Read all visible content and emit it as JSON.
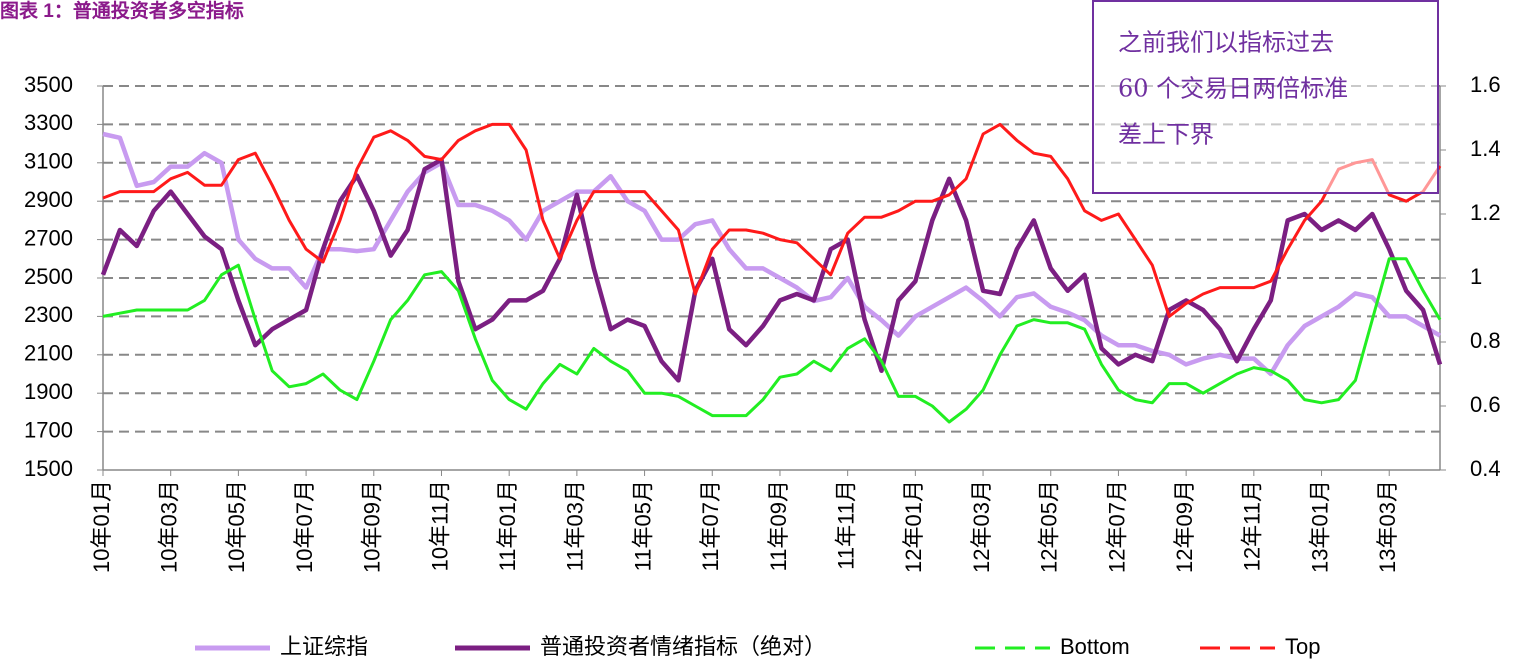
{
  "chart_data": {
    "type": "line",
    "title": "图表 1：普通投资者多空指标",
    "annotation": [
      "之前我们以指标过去",
      "60 个交易日两倍标准",
      "差上下界"
    ],
    "categories": [
      "10年01月",
      null,
      null,
      null,
      "10年03月",
      null,
      null,
      null,
      "10年05月",
      null,
      null,
      null,
      "10年07月",
      null,
      null,
      null,
      "10年09月",
      null,
      null,
      null,
      "10年11月",
      null,
      null,
      null,
      "11年01月",
      null,
      null,
      null,
      "11年03月",
      null,
      null,
      null,
      "11年05月",
      null,
      null,
      null,
      "11年07月",
      null,
      null,
      null,
      "11年09月",
      null,
      null,
      null,
      "11年11月",
      null,
      null,
      null,
      "12年01月",
      null,
      null,
      null,
      "12年03月",
      null,
      null,
      null,
      "12年05月",
      null,
      null,
      null,
      "12年07月",
      null,
      null,
      null,
      "12年09月",
      null,
      null,
      null,
      "12年11月",
      null,
      null,
      null,
      "13年01月",
      null,
      null,
      null,
      "13年03月",
      null,
      null,
      null
    ],
    "ylim": [
      1500,
      3500
    ],
    "yticks": [
      1500,
      1700,
      1900,
      2100,
      2300,
      2500,
      2700,
      2900,
      3100,
      3300,
      3500
    ],
    "y2lim": [
      0.4,
      1.6
    ],
    "y2ticks": [
      0.4,
      0.6,
      0.8,
      1,
      1.2,
      1.4,
      1.6
    ],
    "grid": true,
    "series": [
      {
        "name": "上证综指",
        "color": "#c89bf0",
        "values": [
          3250,
          3230,
          2980,
          3000,
          3080,
          3080,
          3150,
          3100,
          2700,
          2600,
          2550,
          2550,
          2450,
          2650,
          2650,
          2640,
          2650,
          2800,
          2950,
          3050,
          3100,
          2880,
          2880,
          2850,
          2800,
          2700,
          2850,
          2900,
          2950,
          2950,
          3030,
          2900,
          2850,
          2700,
          2700,
          2780,
          2800,
          2650,
          2550,
          2550,
          2500,
          2450,
          2380,
          2400,
          2500,
          2350,
          2280,
          2200,
          2300,
          2350,
          2400,
          2450,
          2380,
          2300,
          2400,
          2420,
          2350,
          2320,
          2280,
          2200,
          2150,
          2150,
          2120,
          2100,
          2050,
          2080,
          2100,
          2080,
          2080,
          2000,
          2150,
          2250,
          2300,
          2350,
          2420,
          2400,
          2300,
          2300,
          2250,
          2200
        ]
      },
      {
        "name": "普通投资者情绪指标（绝对）",
        "color": "#7b1f82",
        "axis": "y2",
        "values": [
          1.01,
          1.15,
          1.1,
          1.21,
          1.27,
          1.2,
          1.13,
          1.09,
          0.93,
          0.79,
          0.84,
          0.87,
          0.9,
          1.09,
          1.24,
          1.32,
          1.21,
          1.07,
          1.15,
          1.34,
          1.37,
          0.99,
          0.84,
          0.87,
          0.93,
          0.93,
          0.96,
          1.06,
          1.26,
          1.03,
          0.84,
          0.87,
          0.85,
          0.74,
          0.68,
          0.96,
          1.06,
          0.84,
          0.79,
          0.85,
          0.93,
          0.95,
          0.93,
          1.09,
          1.12,
          0.87,
          0.71,
          0.93,
          0.99,
          1.18,
          1.31,
          1.18,
          0.96,
          0.95,
          1.09,
          1.18,
          1.03,
          0.96,
          1.01,
          0.78,
          0.73,
          0.76,
          0.74,
          0.9,
          0.93,
          0.9,
          0.84,
          0.74,
          0.84,
          0.93,
          1.18,
          1.2,
          1.15,
          1.18,
          1.15,
          1.2,
          1.09,
          0.96,
          0.9,
          0.73
        ]
      },
      {
        "name": "Bottom",
        "color": "#22ee22",
        "axis": "y2",
        "legend_style": "dashed",
        "values": [
          0.88,
          0.89,
          0.9,
          0.9,
          0.9,
          0.9,
          0.93,
          1.01,
          1.04,
          0.87,
          0.71,
          0.66,
          0.67,
          0.7,
          0.65,
          0.62,
          0.74,
          0.87,
          0.93,
          1.01,
          1.02,
          0.96,
          0.81,
          0.68,
          0.62,
          0.59,
          0.67,
          0.73,
          0.7,
          0.78,
          0.74,
          0.71,
          0.64,
          0.64,
          0.63,
          0.6,
          0.57,
          0.57,
          0.57,
          0.62,
          0.69,
          0.7,
          0.74,
          0.71,
          0.78,
          0.81,
          0.74,
          0.63,
          0.63,
          0.6,
          0.55,
          0.59,
          0.65,
          0.76,
          0.85,
          0.87,
          0.86,
          0.86,
          0.84,
          0.73,
          0.65,
          0.62,
          0.61,
          0.67,
          0.67,
          0.64,
          0.67,
          0.7,
          0.72,
          0.71,
          0.68,
          0.62,
          0.61,
          0.62,
          0.68,
          0.87,
          1.06,
          1.06,
          0.96,
          0.87
        ]
      },
      {
        "name": "Top",
        "color": "#ff1a1a",
        "axis": "y2",
        "legend_style": "dashed",
        "values": [
          1.25,
          1.27,
          1.27,
          1.27,
          1.31,
          1.33,
          1.29,
          1.29,
          1.37,
          1.39,
          1.29,
          1.18,
          1.09,
          1.05,
          1.18,
          1.34,
          1.44,
          1.46,
          1.43,
          1.38,
          1.37,
          1.43,
          1.46,
          1.48,
          1.48,
          1.4,
          1.18,
          1.06,
          1.18,
          1.27,
          1.27,
          1.27,
          1.27,
          1.21,
          1.15,
          0.95,
          1.09,
          1.15,
          1.15,
          1.14,
          1.12,
          1.11,
          1.06,
          1.01,
          1.14,
          1.19,
          1.19,
          1.21,
          1.24,
          1.24,
          1.26,
          1.31,
          1.45,
          1.48,
          1.43,
          1.39,
          1.38,
          1.31,
          1.21,
          1.18,
          1.2,
          1.12,
          1.04,
          0.88,
          0.92,
          0.95,
          0.97,
          0.97,
          0.97,
          0.99,
          1.09,
          1.18,
          1.24,
          1.34,
          1.36,
          1.37,
          1.26,
          1.24,
          1.27,
          1.35
        ]
      }
    ]
  }
}
